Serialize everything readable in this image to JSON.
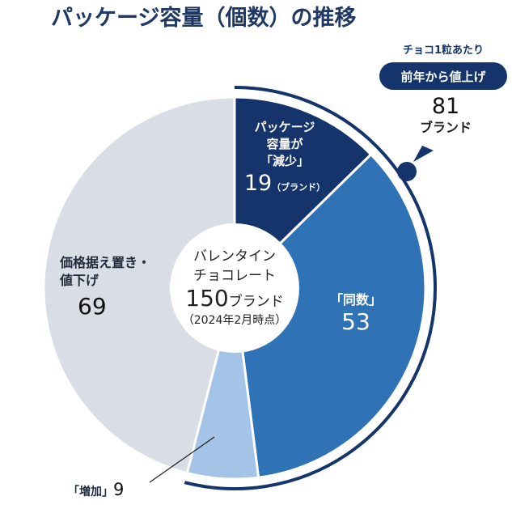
{
  "chart_data": {
    "type": "pie",
    "title": "パッケージ容量（個数）の推移",
    "center": {
      "line1": "バレンタイン",
      "line2": "チョコレート",
      "total_value": "150",
      "total_unit": "ブランド",
      "date": "（2024年2月時点）"
    },
    "slices": [
      {
        "name": "reduce",
        "label_lines": [
          "パッケージ",
          "容量が",
          "「減少」"
        ],
        "value": 19,
        "unit": "（ブランド）",
        "color": "#15346b"
      },
      {
        "name": "same",
        "label_lines": [
          "「同数」"
        ],
        "value": 53,
        "unit": "",
        "color": "#2f73b6"
      },
      {
        "name": "increase",
        "label_lines": [
          "「増加」"
        ],
        "value": 9,
        "unit": "",
        "color": "#a3c4e6"
      },
      {
        "name": "price-unchanged",
        "label_lines": [
          "価格据え置き・",
          "値下げ"
        ],
        "value": 69,
        "unit": "",
        "color": "#d9dde5"
      }
    ],
    "annotation": {
      "small": "チョコ1粒あたり",
      "badge": "前年から値上げ",
      "value": "81",
      "unit": "ブランド",
      "covers": [
        "reduce",
        "same",
        "increase"
      ]
    },
    "colors": {
      "title": "#1f3864",
      "badge": "#15346b",
      "arc": "#15346b"
    }
  }
}
